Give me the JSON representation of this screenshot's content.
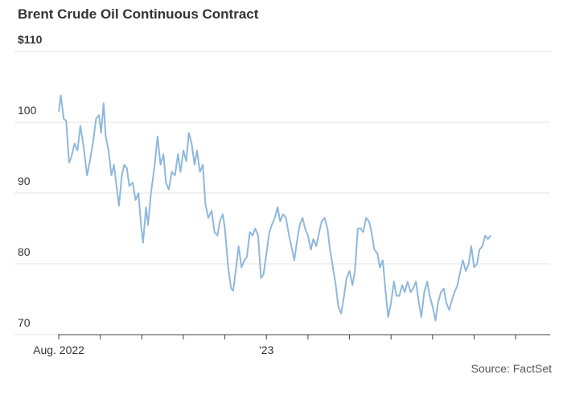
{
  "chart_data": {
    "type": "line",
    "title": "Brent Crude Oil Continuous Contract",
    "source": "Source: FactSet",
    "ylim": [
      70,
      110
    ],
    "y_ticks": [
      {
        "value": 110,
        "label": "$110"
      },
      {
        "value": 100,
        "label": "100"
      },
      {
        "value": 90,
        "label": "90"
      },
      {
        "value": 80,
        "label": "80"
      },
      {
        "value": 70,
        "label": "70"
      }
    ],
    "x_ticks": [
      {
        "value": 0,
        "label": "Aug. 2022"
      },
      {
        "value": 5,
        "label": "'23"
      }
    ],
    "xlim": [
      -0.02,
      11.83
    ],
    "grid": true,
    "line_color": "#8fb8dc",
    "series": [
      {
        "values": [
          [
            0.0,
            101.5
          ],
          [
            0.05,
            103.8
          ],
          [
            0.12,
            100.5
          ],
          [
            0.18,
            100.2
          ],
          [
            0.25,
            94.3
          ],
          [
            0.3,
            95.0
          ],
          [
            0.38,
            97.0
          ],
          [
            0.45,
            96.0
          ],
          [
            0.52,
            99.5
          ],
          [
            0.6,
            96.5
          ],
          [
            0.68,
            92.5
          ],
          [
            0.75,
            94.5
          ],
          [
            0.82,
            97.0
          ],
          [
            0.9,
            100.5
          ],
          [
            0.97,
            101.0
          ],
          [
            1.02,
            98.5
          ],
          [
            1.08,
            102.7
          ],
          [
            1.13,
            98.0
          ],
          [
            1.2,
            96.0
          ],
          [
            1.27,
            92.5
          ],
          [
            1.33,
            94.0
          ],
          [
            1.38,
            91.5
          ],
          [
            1.45,
            88.2
          ],
          [
            1.52,
            92.5
          ],
          [
            1.58,
            94.0
          ],
          [
            1.64,
            93.5
          ],
          [
            1.7,
            91.0
          ],
          [
            1.78,
            91.5
          ],
          [
            1.85,
            89.0
          ],
          [
            1.92,
            90.0
          ],
          [
            1.98,
            85.5
          ],
          [
            2.03,
            83.0
          ],
          [
            2.1,
            88.0
          ],
          [
            2.15,
            85.5
          ],
          [
            2.22,
            90.0
          ],
          [
            2.3,
            93.5
          ],
          [
            2.38,
            98.0
          ],
          [
            2.45,
            94.0
          ],
          [
            2.52,
            95.5
          ],
          [
            2.58,
            91.5
          ],
          [
            2.65,
            90.5
          ],
          [
            2.72,
            93.0
          ],
          [
            2.8,
            92.5
          ],
          [
            2.87,
            95.5
          ],
          [
            2.93,
            93.0
          ],
          [
            3.0,
            96.0
          ],
          [
            3.07,
            94.5
          ],
          [
            3.13,
            98.5
          ],
          [
            3.2,
            97.0
          ],
          [
            3.27,
            94.0
          ],
          [
            3.33,
            96.0
          ],
          [
            3.4,
            93.0
          ],
          [
            3.47,
            94.0
          ],
          [
            3.53,
            88.5
          ],
          [
            3.6,
            86.5
          ],
          [
            3.68,
            87.5
          ],
          [
            3.75,
            84.5
          ],
          [
            3.82,
            84.0
          ],
          [
            3.88,
            86.0
          ],
          [
            3.95,
            87.0
          ],
          [
            4.0,
            85.0
          ],
          [
            4.08,
            79.5
          ],
          [
            4.15,
            76.5
          ],
          [
            4.2,
            76.2
          ],
          [
            4.27,
            79.5
          ],
          [
            4.33,
            82.5
          ],
          [
            4.4,
            79.5
          ],
          [
            4.47,
            80.5
          ],
          [
            4.53,
            81.0
          ],
          [
            4.6,
            84.5
          ],
          [
            4.67,
            84.0
          ],
          [
            4.73,
            85.0
          ],
          [
            4.8,
            84.0
          ],
          [
            4.87,
            78.0
          ],
          [
            4.93,
            78.5
          ],
          [
            5.0,
            81.5
          ],
          [
            5.07,
            84.5
          ],
          [
            5.13,
            85.5
          ],
          [
            5.2,
            86.5
          ],
          [
            5.27,
            88.0
          ],
          [
            5.33,
            86.0
          ],
          [
            5.4,
            87.0
          ],
          [
            5.47,
            86.5
          ],
          [
            5.53,
            84.5
          ],
          [
            5.6,
            82.5
          ],
          [
            5.67,
            80.5
          ],
          [
            5.73,
            83.0
          ],
          [
            5.8,
            85.5
          ],
          [
            5.87,
            86.5
          ],
          [
            5.93,
            85.0
          ],
          [
            6.0,
            84.0
          ],
          [
            6.07,
            82.0
          ],
          [
            6.13,
            83.5
          ],
          [
            6.2,
            82.5
          ],
          [
            6.27,
            84.5
          ],
          [
            6.33,
            86.0
          ],
          [
            6.4,
            86.5
          ],
          [
            6.47,
            85.0
          ],
          [
            6.53,
            82.0
          ],
          [
            6.6,
            79.5
          ],
          [
            6.67,
            77.0
          ],
          [
            6.73,
            74.0
          ],
          [
            6.8,
            73.0
          ],
          [
            6.87,
            75.5
          ],
          [
            6.93,
            78.0
          ],
          [
            7.0,
            79.0
          ],
          [
            7.07,
            77.0
          ],
          [
            7.13,
            79.0
          ],
          [
            7.2,
            85.0
          ],
          [
            7.27,
            85.0
          ],
          [
            7.33,
            84.5
          ],
          [
            7.4,
            86.5
          ],
          [
            7.47,
            86.0
          ],
          [
            7.53,
            84.5
          ],
          [
            7.6,
            82.0
          ],
          [
            7.67,
            81.5
          ],
          [
            7.73,
            79.5
          ],
          [
            7.8,
            80.5
          ],
          [
            7.87,
            76.0
          ],
          [
            7.93,
            72.5
          ],
          [
            8.0,
            74.5
          ],
          [
            8.07,
            77.5
          ],
          [
            8.13,
            75.5
          ],
          [
            8.2,
            75.5
          ],
          [
            8.27,
            77.0
          ],
          [
            8.33,
            76.0
          ],
          [
            8.4,
            77.5
          ],
          [
            8.47,
            76.0
          ],
          [
            8.53,
            76.5
          ],
          [
            8.6,
            77.5
          ],
          [
            8.67,
            74.5
          ],
          [
            8.73,
            72.5
          ],
          [
            8.8,
            76.0
          ],
          [
            8.87,
            77.5
          ],
          [
            8.93,
            75.5
          ],
          [
            9.0,
            74.0
          ],
          [
            9.07,
            72.0
          ],
          [
            9.13,
            74.5
          ],
          [
            9.2,
            76.0
          ],
          [
            9.27,
            76.5
          ],
          [
            9.33,
            74.5
          ],
          [
            9.4,
            73.5
          ],
          [
            9.47,
            75.0
          ],
          [
            9.53,
            76.0
          ],
          [
            9.6,
            77.0
          ],
          [
            9.67,
            79.0
          ],
          [
            9.73,
            80.5
          ],
          [
            9.8,
            79.0
          ],
          [
            9.87,
            80.0
          ],
          [
            9.93,
            82.5
          ],
          [
            10.0,
            79.5
          ],
          [
            10.07,
            80.0
          ],
          [
            10.13,
            82.0
          ],
          [
            10.2,
            82.5
          ],
          [
            10.27,
            84.0
          ],
          [
            10.33,
            83.5
          ],
          [
            10.4,
            84.0
          ]
        ]
      }
    ]
  }
}
